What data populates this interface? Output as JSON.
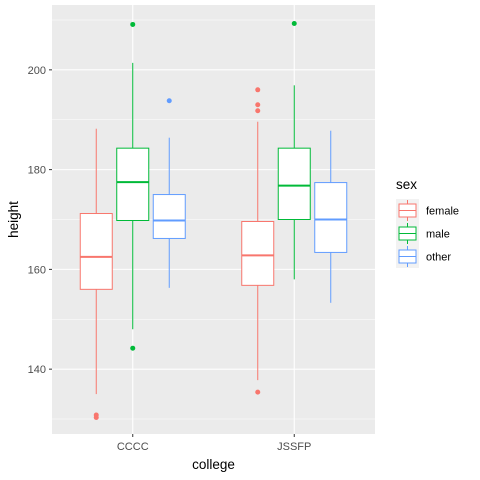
{
  "chart_data": {
    "type": "boxplot",
    "xlabel": "college",
    "ylabel": "height",
    "categories": [
      "CCCC",
      "JSSFP"
    ],
    "ylim": [
      127,
      213
    ],
    "yticks": [
      140,
      160,
      180,
      200
    ],
    "grid": true,
    "legend": {
      "title": "sex",
      "position": "right",
      "entries": [
        "female",
        "male",
        "other"
      ]
    },
    "series": [
      {
        "name": "female",
        "color": "#F8766D",
        "boxes": [
          {
            "category": "CCCC",
            "lower_whisker": 135,
            "q1": 156,
            "median": 162.5,
            "q3": 171.2,
            "upper_whisker": 188.2,
            "outliers": [
              130.3,
              130.8
            ]
          },
          {
            "category": "JSSFP",
            "lower_whisker": 137.8,
            "q1": 156.8,
            "median": 162.8,
            "q3": 169.6,
            "upper_whisker": 189.6,
            "outliers": [
              135.4,
              191.8,
              193,
              196
            ]
          }
        ]
      },
      {
        "name": "male",
        "color": "#00BA38",
        "boxes": [
          {
            "category": "CCCC",
            "lower_whisker": 148,
            "q1": 169.8,
            "median": 177.5,
            "q3": 184.3,
            "upper_whisker": 201.4,
            "outliers": [
              144.2,
              209.1
            ]
          },
          {
            "category": "JSSFP",
            "lower_whisker": 158,
            "q1": 170,
            "median": 176.8,
            "q3": 184.3,
            "upper_whisker": 196.9,
            "outliers": [
              209.3
            ]
          }
        ]
      },
      {
        "name": "other",
        "color": "#619CFF",
        "boxes": [
          {
            "category": "CCCC",
            "lower_whisker": 156.3,
            "q1": 166.2,
            "median": 169.8,
            "q3": 175,
            "upper_whisker": 186.4,
            "outliers": [
              193.8
            ]
          },
          {
            "category": "JSSFP",
            "lower_whisker": 153.3,
            "q1": 163.4,
            "median": 170,
            "q3": 177.4,
            "upper_whisker": 187.8,
            "outliers": []
          }
        ]
      }
    ]
  }
}
